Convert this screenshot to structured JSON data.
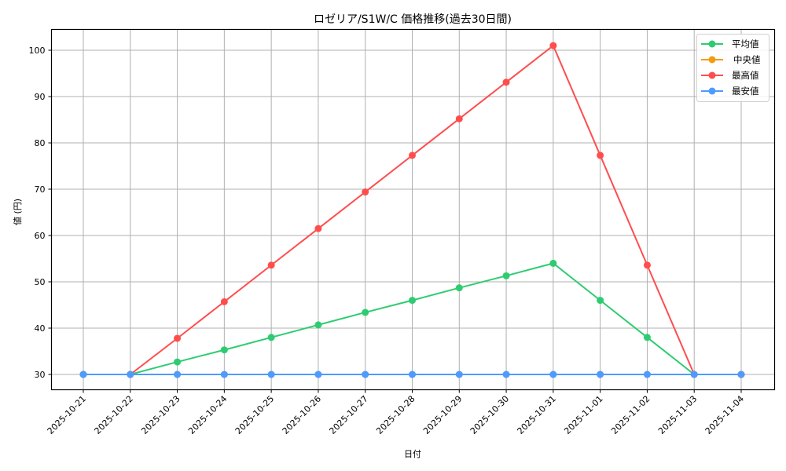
{
  "chart_data": {
    "type": "line",
    "title": "ロゼリア/S1W/C 価格推移(過去30日間)",
    "xlabel": "日付",
    "ylabel": "値 (円)",
    "categories": [
      "2025-10-21",
      "2025-10-22",
      "2025-10-23",
      "2025-10-24",
      "2025-10-25",
      "2025-10-26",
      "2025-10-27",
      "2025-10-28",
      "2025-10-29",
      "2025-10-30",
      "2025-10-31",
      "2025-11-01",
      "2025-11-02",
      "2025-11-03",
      "2025-11-04"
    ],
    "yticks": [
      30,
      40,
      50,
      60,
      70,
      80,
      90,
      100
    ],
    "ylim": [
      26.5,
      105.2
    ],
    "grid": true,
    "legend_position": "upper right",
    "series": [
      {
        "name": "平均値",
        "color": "#2ecc71",
        "values": [
          30,
          30,
          32.7,
          35.3,
          38.0,
          40.7,
          43.4,
          46.0,
          48.7,
          51.3,
          54.0,
          46.0,
          38.0,
          30,
          30
        ]
      },
      {
        "name": "中央値",
        "color": "#f39c12",
        "values": [
          30,
          30,
          30,
          30,
          30,
          30,
          30,
          30,
          30,
          30,
          30,
          30,
          30,
          30,
          30
        ]
      },
      {
        "name": "最高値",
        "color": "#ff4d4d",
        "values": [
          30,
          30,
          37.8,
          45.7,
          53.6,
          61.5,
          69.4,
          77.3,
          85.2,
          93.1,
          101,
          77.3,
          53.6,
          30,
          30
        ]
      },
      {
        "name": "最安値",
        "color": "#4d9bff",
        "values": [
          30,
          30,
          30,
          30,
          30,
          30,
          30,
          30,
          30,
          30,
          30,
          30,
          30,
          30,
          30
        ]
      }
    ]
  }
}
